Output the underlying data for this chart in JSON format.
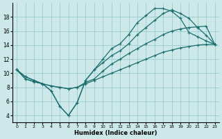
{
  "xlabel": "Humidex (Indice chaleur)",
  "ylabel": "",
  "bg_color": "#cce8e8",
  "grid_color": "#99cccc",
  "line_color": "#1a6e6e",
  "xlim": [
    -0.5,
    23.5
  ],
  "ylim": [
    3,
    20
  ],
  "xticks": [
    0,
    1,
    2,
    3,
    4,
    5,
    6,
    7,
    8,
    9,
    10,
    11,
    12,
    13,
    14,
    15,
    16,
    17,
    18,
    19,
    20,
    21,
    22,
    23
  ],
  "yticks": [
    4,
    6,
    8,
    10,
    12,
    14,
    16,
    18
  ],
  "line1_x": [
    0,
    1,
    2,
    3,
    4,
    5,
    6,
    7,
    8,
    9,
    10,
    11,
    12,
    13,
    14,
    15,
    16,
    17,
    18,
    19,
    20,
    21,
    22,
    23
  ],
  "line1_y": [
    10.5,
    9.2,
    8.8,
    8.5,
    8.2,
    8.0,
    7.8,
    8.0,
    8.5,
    9.0,
    9.5,
    10.0,
    10.5,
    11.0,
    11.5,
    12.0,
    12.5,
    13.0,
    13.3,
    13.6,
    13.8,
    14.0,
    14.1,
    14.1
  ],
  "line2_x": [
    0,
    1,
    2,
    3,
    4,
    5,
    6,
    7,
    8,
    9,
    10,
    11,
    12,
    13,
    14,
    15,
    16,
    17,
    18,
    19,
    20,
    21,
    22,
    23
  ],
  "line2_y": [
    10.5,
    9.2,
    8.8,
    8.5,
    8.2,
    8.0,
    7.8,
    8.0,
    8.7,
    9.2,
    10.3,
    11.3,
    12.0,
    12.8,
    13.5,
    14.2,
    14.8,
    15.5,
    16.0,
    16.3,
    16.5,
    16.6,
    16.7,
    14.1
  ],
  "line3_x": [
    0,
    1,
    2,
    3,
    4,
    5,
    6,
    7,
    8,
    9,
    10,
    11,
    12,
    13,
    14,
    15,
    16,
    17,
    18,
    19,
    20,
    21,
    22,
    23
  ],
  "line3_y": [
    10.5,
    9.5,
    9.0,
    8.5,
    7.5,
    5.3,
    4.0,
    5.8,
    9.0,
    10.5,
    11.5,
    12.5,
    13.2,
    14.2,
    15.5,
    16.5,
    17.5,
    18.5,
    19.0,
    18.5,
    17.8,
    16.5,
    15.4,
    14.1
  ],
  "line4_x": [
    0,
    1,
    2,
    3,
    4,
    5,
    6,
    7,
    8,
    9,
    10,
    11,
    12,
    13,
    14,
    15,
    16,
    17,
    18,
    19,
    20,
    21,
    22,
    23
  ],
  "line4_y": [
    10.5,
    9.5,
    9.0,
    8.5,
    7.5,
    5.3,
    4.0,
    5.8,
    9.0,
    10.5,
    12.0,
    13.5,
    14.2,
    15.5,
    17.2,
    18.2,
    19.2,
    19.2,
    18.8,
    17.8,
    15.8,
    15.2,
    14.6,
    14.1
  ]
}
